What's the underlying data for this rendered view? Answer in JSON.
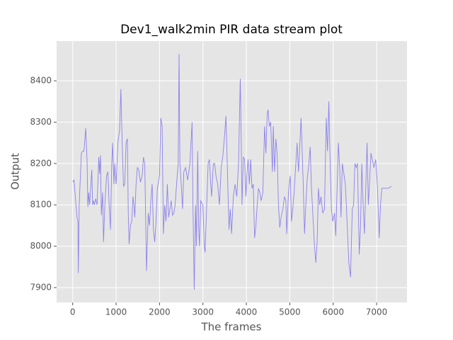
{
  "chart_data": {
    "type": "line",
    "title": "Dev1_walk2min PIR data stream plot",
    "x_label": "The frames",
    "y_label": "Output",
    "color": "#8c82ea",
    "grid": true,
    "xlim": [
      -370,
      7700
    ],
    "ylim": [
      7864,
      8496
    ],
    "xticks": [
      0,
      1000,
      2000,
      3000,
      4000,
      5000,
      6000,
      7000
    ],
    "yticks": [
      7900,
      8000,
      8100,
      8200,
      8300,
      8400
    ],
    "x": [
      0,
      30,
      60,
      100,
      120,
      130,
      150,
      200,
      230,
      260,
      300,
      330,
      350,
      370,
      390,
      420,
      440,
      460,
      480,
      500,
      530,
      560,
      580,
      600,
      620,
      640,
      660,
      690,
      710,
      740,
      780,
      810,
      840,
      870,
      900,
      920,
      950,
      970,
      1000,
      1040,
      1080,
      1110,
      1140,
      1170,
      1200,
      1230,
      1260,
      1280,
      1300,
      1330,
      1360,
      1390,
      1410,
      1430,
      1460,
      1490,
      1520,
      1560,
      1600,
      1630,
      1660,
      1700,
      1740,
      1770,
      1800,
      1830,
      1860,
      1890,
      1920,
      1950,
      2000,
      2030,
      2060,
      2090,
      2120,
      2150,
      2180,
      2210,
      2240,
      2270,
      2300,
      2330,
      2360,
      2400,
      2430,
      2450,
      2470,
      2500,
      2530,
      2560,
      2600,
      2650,
      2700,
      2750,
      2770,
      2800,
      2830,
      2850,
      2880,
      2900,
      2920,
      2950,
      3000,
      3030,
      3050,
      3080,
      3120,
      3150,
      3180,
      3200,
      3240,
      3270,
      3300,
      3340,
      3380,
      3420,
      3460,
      3500,
      3530,
      3560,
      3600,
      3630,
      3660,
      3700,
      3740,
      3780,
      3820,
      3860,
      3880,
      3900,
      3930,
      3960,
      3990,
      4010,
      4040,
      4070,
      4100,
      4130,
      4160,
      4190,
      4220,
      4250,
      4280,
      4310,
      4340,
      4380,
      4420,
      4450,
      4480,
      4500,
      4530,
      4560,
      4600,
      4620,
      4650,
      4680,
      4710,
      4740,
      4770,
      4800,
      4840,
      4880,
      4910,
      4930,
      4970,
      5010,
      5040,
      5070,
      5100,
      5140,
      5170,
      5200,
      5230,
      5260,
      5280,
      5310,
      5340,
      5370,
      5400,
      5440,
      5470,
      5500,
      5540,
      5570,
      5600,
      5630,
      5660,
      5690,
      5720,
      5760,
      5800,
      5840,
      5870,
      5900,
      5930,
      5960,
      5990,
      6030,
      6060,
      6090,
      6120,
      6150,
      6180,
      6210,
      6240,
      6280,
      6320,
      6360,
      6400,
      6440,
      6470,
      6500,
      6530,
      6560,
      6600,
      6630,
      6660,
      6690,
      6720,
      6750,
      6780,
      6810,
      6840,
      6870,
      6900,
      6940,
      6980,
      7020,
      7060,
      7090,
      7120,
      7160,
      7200,
      7270,
      7340
    ],
    "values": [
      8155,
      8160,
      8120,
      8070,
      8060,
      7935,
      8100,
      8225,
      8230,
      8230,
      8285,
      8210,
      8095,
      8130,
      8100,
      8150,
      8185,
      8100,
      8110,
      8100,
      8115,
      8100,
      8150,
      8215,
      8175,
      8220,
      8075,
      8130,
      8010,
      8100,
      8170,
      8180,
      8100,
      8040,
      8200,
      8250,
      8150,
      8200,
      8150,
      8250,
      8280,
      8380,
      8250,
      8145,
      8150,
      8250,
      8260,
      8080,
      8005,
      8050,
      8060,
      8120,
      8100,
      8070,
      8150,
      8190,
      8185,
      8155,
      8170,
      8215,
      8200,
      7940,
      8080,
      8050,
      8110,
      8150,
      8040,
      8010,
      8060,
      8140,
      8170,
      8310,
      8290,
      8030,
      8100,
      8060,
      8150,
      8070,
      8090,
      8110,
      8075,
      8080,
      8100,
      8160,
      8200,
      8465,
      8200,
      8150,
      8090,
      8180,
      8190,
      8160,
      8200,
      8300,
      8100,
      7895,
      8100,
      8000,
      8230,
      8050,
      8000,
      8110,
      8100,
      8000,
      7985,
      8080,
      8200,
      8210,
      8150,
      8120,
      8200,
      8200,
      8170,
      8150,
      8100,
      8190,
      8220,
      8270,
      8315,
      8200,
      8040,
      8090,
      8030,
      8120,
      8150,
      8120,
      8200,
      8405,
      8270,
      8100,
      8215,
      8210,
      8120,
      8170,
      8210,
      8150,
      8210,
      8140,
      8150,
      8020,
      8050,
      8100,
      8140,
      8130,
      8110,
      8130,
      8290,
      8225,
      8320,
      8330,
      8290,
      8300,
      8180,
      8290,
      8180,
      8260,
      8220,
      8100,
      8045,
      8070,
      8090,
      8120,
      8110,
      8030,
      8130,
      8170,
      8060,
      8090,
      8130,
      8200,
      8250,
      8180,
      8240,
      8310,
      8250,
      8150,
      8030,
      8100,
      8160,
      8200,
      8240,
      8140,
      8060,
      8000,
      7960,
      8010,
      8140,
      8100,
      8120,
      8080,
      8090,
      8310,
      8230,
      8350,
      8200,
      8090,
      8060,
      8080,
      8025,
      8140,
      8250,
      8190,
      8070,
      8200,
      8180,
      8150,
      8060,
      7960,
      7925,
      8090,
      8100,
      8200,
      8190,
      8200,
      7980,
      8050,
      8200,
      8100,
      8030,
      8140,
      8250,
      8100,
      8160,
      8225,
      8210,
      8190,
      8210,
      8140,
      8020,
      8100,
      8140,
      8140,
      8140,
      8140,
      8145
    ]
  }
}
